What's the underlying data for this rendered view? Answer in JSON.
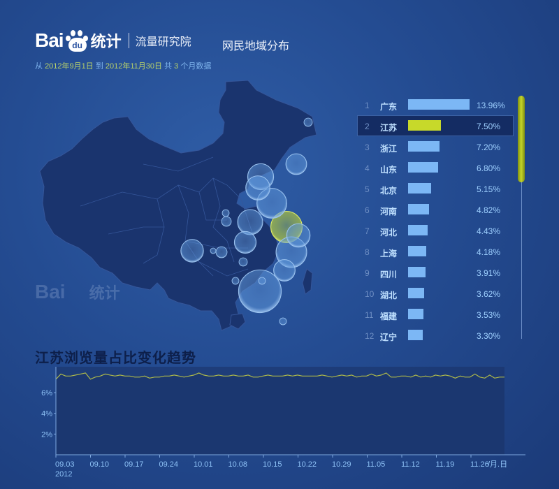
{
  "header": {
    "logo_bai": "Bai",
    "logo_du": "du",
    "logo_tongji": "统计",
    "brand_name": "流量研究院",
    "page_title": "网民地域分布",
    "range_from_label": "从",
    "range_start": "2012年9月1日",
    "range_to_label": "到",
    "range_end": "2012年11月30日",
    "range_total_label": "共",
    "range_count": "3",
    "range_unit": "个月数据"
  },
  "watermark": {
    "bai": "Bai",
    "tongji": "统计"
  },
  "ranking": {
    "selected_index": 1,
    "items": [
      {
        "rank": "1",
        "province": "广东",
        "share": 13.96,
        "label": "13.96%"
      },
      {
        "rank": "2",
        "province": "江苏",
        "share": 7.5,
        "label": "7.50%"
      },
      {
        "rank": "3",
        "province": "浙江",
        "share": 7.2,
        "label": "7.20%"
      },
      {
        "rank": "4",
        "province": "山东",
        "share": 6.8,
        "label": "6.80%"
      },
      {
        "rank": "5",
        "province": "北京",
        "share": 5.15,
        "label": "5.15%"
      },
      {
        "rank": "6",
        "province": "河南",
        "share": 4.82,
        "label": "4.82%"
      },
      {
        "rank": "7",
        "province": "河北",
        "share": 4.43,
        "label": "4.43%"
      },
      {
        "rank": "8",
        "province": "上海",
        "share": 4.18,
        "label": "4.18%"
      },
      {
        "rank": "9",
        "province": "四川",
        "share": 3.91,
        "label": "3.91%"
      },
      {
        "rank": "10",
        "province": "湖北",
        "share": 3.62,
        "label": "3.62%"
      },
      {
        "rank": "11",
        "province": "福建",
        "share": 3.53,
        "label": "3.53%"
      },
      {
        "rank": "12",
        "province": "辽宁",
        "share": 3.3,
        "label": "3.30%"
      }
    ]
  },
  "colors": {
    "bar": "#7cb7f5",
    "bar_selected": "#c7d92a",
    "map_fill": "#1a346e",
    "bubble": "#5d95d8",
    "bubble_selected": "#b3c93a",
    "trend_line": "#aeb94a"
  },
  "chart_data": {
    "type": "line",
    "title": "江苏浏览量占比变化趋势",
    "ylabel": "",
    "xlabel": "/月.日",
    "year_label": "2012",
    "ylim": [
      0,
      8.5
    ],
    "y_ticks": [
      "2%",
      "4%",
      "6%"
    ],
    "y_tick_values": [
      2,
      4,
      6
    ],
    "x_ticks": [
      "09.03",
      "09.10",
      "09.17",
      "09.24",
      "10.01",
      "10.08",
      "10.15",
      "10.22",
      "10.29",
      "11.05",
      "11.12",
      "11.19",
      "11.26"
    ],
    "series": [
      {
        "values": [
          7.3,
          7.8,
          7.6,
          7.6,
          7.7,
          7.8,
          7.9,
          7.3,
          7.5,
          7.6,
          7.8,
          7.7,
          7.6,
          7.7,
          7.6,
          7.6,
          7.5,
          7.5,
          7.6,
          7.4,
          7.5,
          7.5,
          7.6,
          7.6,
          7.7,
          7.6,
          7.5,
          7.6,
          7.7,
          7.9,
          7.7,
          7.6,
          7.6,
          7.7,
          7.6,
          7.6,
          7.7,
          7.6,
          7.6,
          7.7,
          7.5,
          7.5,
          7.6,
          7.7,
          7.6,
          7.6,
          7.6,
          7.7,
          7.6,
          7.7,
          7.6,
          7.6,
          7.6,
          7.6,
          7.7,
          7.6,
          7.5,
          7.6,
          7.7,
          7.6,
          7.7,
          7.5,
          7.6,
          7.6,
          7.8,
          7.6,
          7.7,
          7.9,
          7.5,
          7.5,
          7.6,
          7.6,
          7.5,
          7.7,
          7.5,
          7.6,
          7.5,
          7.7,
          7.6,
          7.7,
          7.6,
          7.4,
          7.6,
          7.5,
          7.5,
          7.8,
          7.5,
          7.4,
          7.7,
          7.4,
          7.5,
          7.5
        ]
      }
    ]
  }
}
